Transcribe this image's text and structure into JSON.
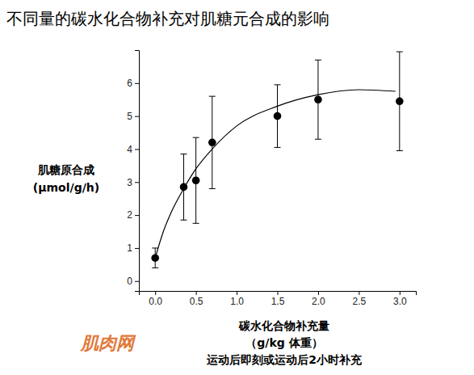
{
  "chart_data": {
    "type": "scatter",
    "title": "不同量的碳水化合物补充对肌糖元合成的影响",
    "ylabel": [
      "肌糖原合成",
      "(μmol/g/h)"
    ],
    "xlabel": [
      "碳水化合物补充量",
      "（g/kg 体重）",
      "运动后即刻或运动后2小时补充"
    ],
    "annotations": [
      "肌肉网"
    ],
    "xlim": [
      -0.2,
      3.2
    ],
    "ylim": [
      -0.3,
      7.0
    ],
    "xticks": [
      {
        "value": 0,
        "label": "0.0"
      },
      {
        "value": 0.5,
        "label": "0.5"
      },
      {
        "value": 1,
        "label": "1.0"
      },
      {
        "value": 1.5,
        "label": "1.5"
      },
      {
        "value": 2,
        "label": "2.0"
      },
      {
        "value": 2.5,
        "label": "2.5"
      },
      {
        "value": 3,
        "label": "3.0"
      }
    ],
    "yticks": [
      0,
      1,
      2,
      3,
      4,
      5,
      6
    ],
    "grid": false,
    "series": [
      {
        "type": "scatter",
        "marker": "circle",
        "color": "#000000",
        "x": [
          0,
          0.35,
          0.5,
          0.7,
          1.5,
          2.0,
          3.0
        ],
        "values": [
          0.7,
          2.85,
          3.05,
          4.2,
          5.0,
          5.5,
          5.45
        ],
        "errors": [
          0.3,
          1.0,
          1.3,
          1.4,
          0.95,
          1.2,
          1.5
        ]
      },
      {
        "type": "line",
        "line_style": "solid",
        "color": "#000000",
        "x": [
          0,
          0.1,
          0.2,
          0.35,
          0.5,
          0.7,
          1.0,
          1.5,
          2.0,
          2.5,
          2.95
        ],
        "values": [
          0.7,
          1.5,
          2.1,
          2.8,
          3.4,
          4.0,
          4.7,
          5.3,
          5.65,
          5.8,
          5.75
        ]
      }
    ]
  }
}
